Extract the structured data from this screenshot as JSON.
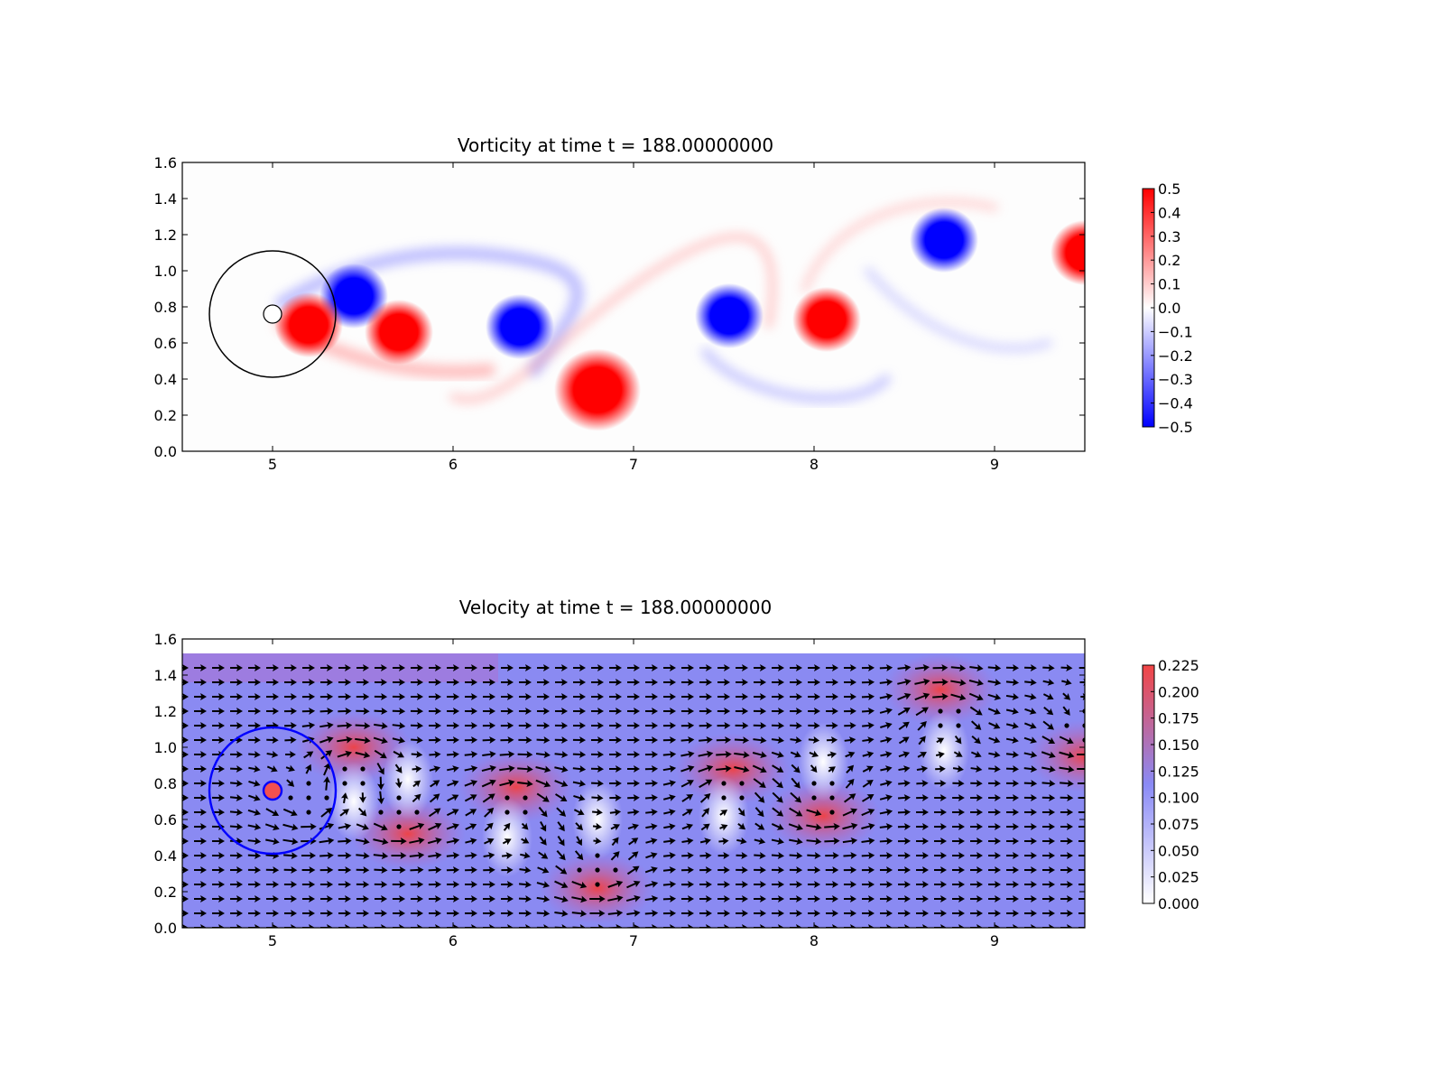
{
  "figure": {
    "background": "#ffffff"
  },
  "chart_data": [
    {
      "type": "heatmap",
      "title": "Vorticity at time t =   188.00000000",
      "xlabel": "",
      "ylabel": "",
      "xlim": [
        4.5,
        9.5
      ],
      "ylim": [
        0.0,
        1.6
      ],
      "xticks": [
        "5",
        "6",
        "7",
        "8",
        "9"
      ],
      "yticks": [
        "0.0",
        "0.2",
        "0.4",
        "0.6",
        "0.8",
        "1.0",
        "1.2",
        "1.4",
        "1.6"
      ],
      "colormap": "bwr",
      "colorbar": {
        "range": [
          -0.5,
          0.5
        ],
        "ticks": [
          "0.5",
          "0.4",
          "0.3",
          "0.2",
          "0.1",
          "0.0",
          "−0.1",
          "−0.2",
          "−0.3",
          "−0.4",
          "−0.5"
        ],
        "colors": [
          "#ff0000",
          "#ffffff",
          "#0000ff"
        ]
      },
      "vortices": [
        {
          "x": 5.45,
          "y": 0.86,
          "value": -0.5
        },
        {
          "x": 5.2,
          "y": 0.7,
          "value": 0.5
        },
        {
          "x": 5.7,
          "y": 0.66,
          "value": 0.5
        },
        {
          "x": 6.37,
          "y": 0.69,
          "value": -0.5
        },
        {
          "x": 6.8,
          "y": 0.34,
          "value": 0.5
        },
        {
          "x": 7.53,
          "y": 0.75,
          "value": -0.5
        },
        {
          "x": 8.07,
          "y": 0.73,
          "value": 0.5
        },
        {
          "x": 8.72,
          "y": 1.17,
          "value": -0.5
        },
        {
          "x": 9.5,
          "y": 1.1,
          "value": 0.5
        }
      ],
      "cylinder": {
        "x": 5.0,
        "y": 0.76,
        "radius": 0.05
      },
      "circle_outline": {
        "x": 5.0,
        "y": 0.76,
        "radius": 0.35,
        "color": "#000000"
      }
    },
    {
      "type": "heatmap",
      "title": "Velocity at time t =   188.00000000",
      "xlabel": "",
      "ylabel": "",
      "xlim": [
        4.5,
        9.5
      ],
      "ylim": [
        0.0,
        1.6
      ],
      "data_ylim": [
        0.0,
        1.52
      ],
      "xticks": [
        "5",
        "6",
        "7",
        "8",
        "9"
      ],
      "yticks": [
        "0.0",
        "0.2",
        "0.4",
        "0.6",
        "0.8",
        "1.0",
        "1.2",
        "1.4",
        "1.6"
      ],
      "colormap": "bwr",
      "quiver": true,
      "colorbar": {
        "range": [
          0.0,
          0.225
        ],
        "ticks": [
          "0.225",
          "0.200",
          "0.175",
          "0.150",
          "0.125",
          "0.100",
          "0.075",
          "0.050",
          "0.025",
          "0.000"
        ],
        "colors": [
          "#f24545",
          "#8a8af5",
          "#ffffff"
        ]
      },
      "fast_regions": [
        {
          "x": 6.35,
          "y": 0.78
        },
        {
          "x": 6.8,
          "y": 0.22
        },
        {
          "x": 8.05,
          "y": 0.62
        },
        {
          "x": 7.55,
          "y": 0.88
        },
        {
          "x": 8.7,
          "y": 1.32
        },
        {
          "x": 9.5,
          "y": 0.95
        },
        {
          "x": 5.75,
          "y": 0.52
        },
        {
          "x": 5.45,
          "y": 1.0
        }
      ],
      "slow_regions": [
        {
          "x": 5.45,
          "y": 0.7
        },
        {
          "x": 5.75,
          "y": 0.82
        },
        {
          "x": 6.3,
          "y": 0.5
        },
        {
          "x": 6.8,
          "y": 0.6
        },
        {
          "x": 7.5,
          "y": 0.62
        },
        {
          "x": 8.05,
          "y": 0.92
        },
        {
          "x": 8.72,
          "y": 0.98
        }
      ],
      "cylinder": {
        "x": 5.0,
        "y": 0.76,
        "radius": 0.05,
        "color": "#0000ff"
      },
      "circle_outline": {
        "x": 5.0,
        "y": 0.76,
        "radius": 0.35,
        "color": "#0000ff"
      }
    }
  ]
}
